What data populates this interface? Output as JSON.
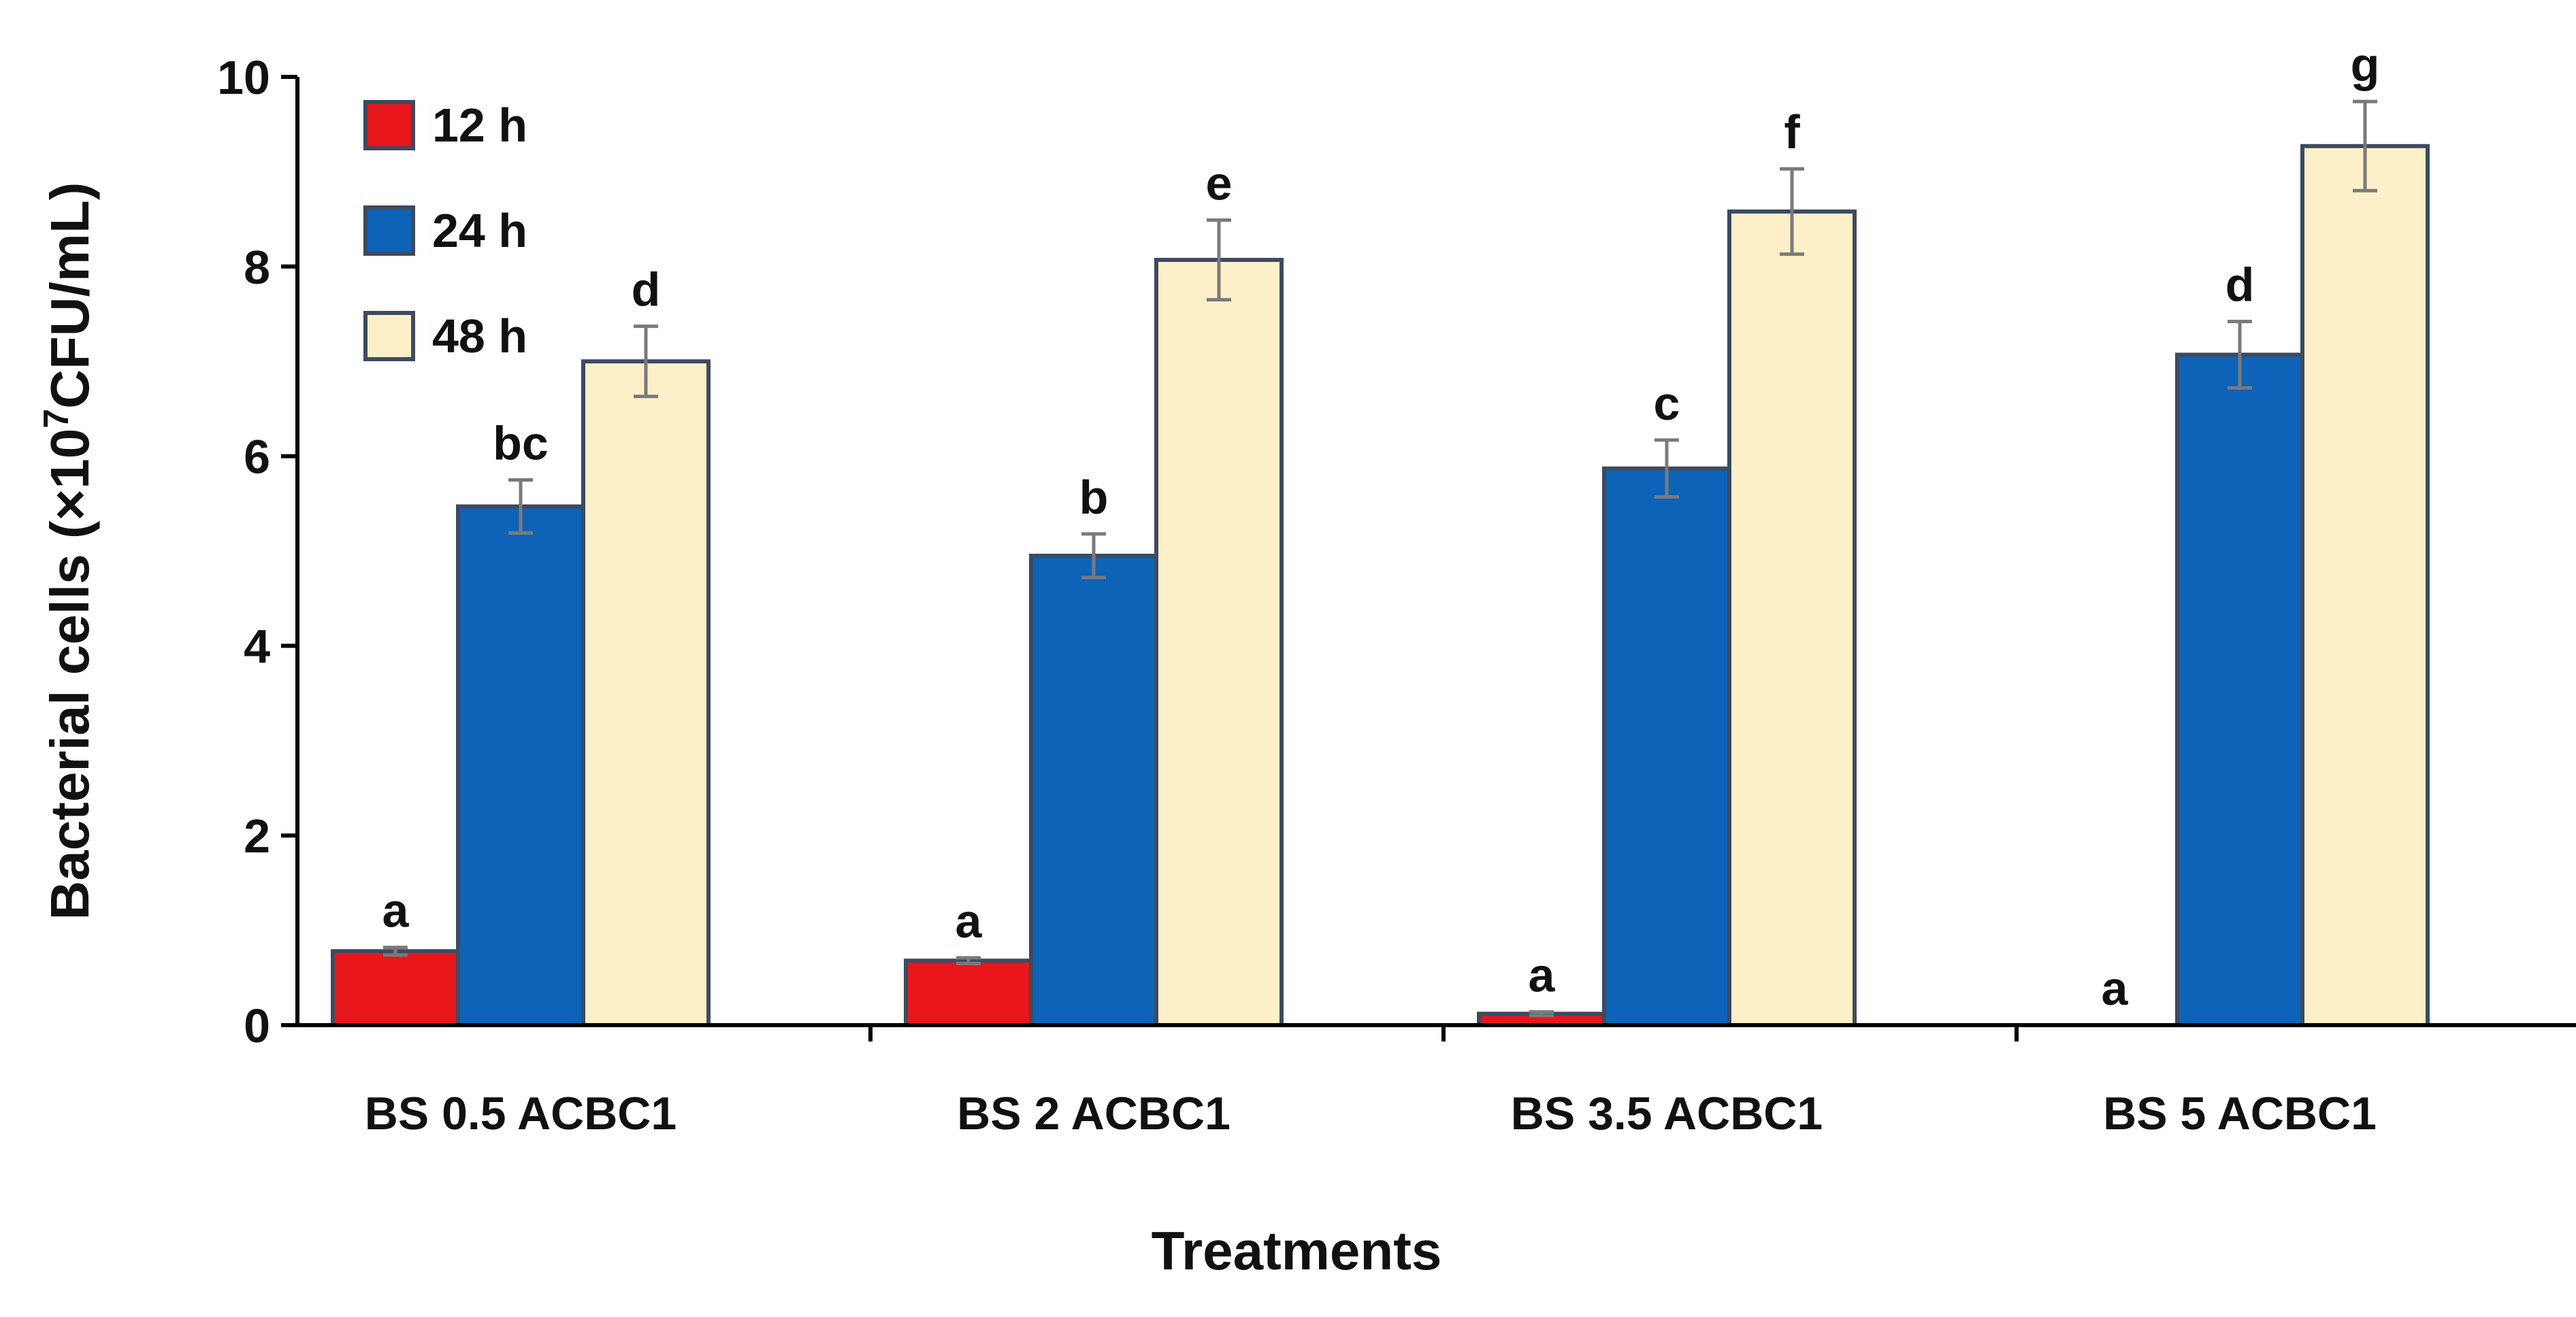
{
  "chart_data": {
    "type": "bar",
    "title": "",
    "xlabel": "Treatments",
    "ylabel_parts": [
      "Bacterial cells (×10",
      "7",
      "CFU/mL)"
    ],
    "ylim": [
      0,
      10
    ],
    "yticks": [
      0,
      2,
      4,
      6,
      8,
      10
    ],
    "ytick_labels": [
      "0",
      "2",
      "4",
      "6",
      "8",
      "10"
    ],
    "grid": false,
    "legend_position": "top-left",
    "categories": [
      "BS 0.5 ACBC1",
      "BS 2 ACBC1",
      "BS 3.5 ACBC1",
      "BS 5 ACBC1"
    ],
    "series": [
      {
        "name": "12 h",
        "color": "#e8161b",
        "values": [
          0.78,
          0.68,
          0.12,
          0.0
        ],
        "errors": [
          0.04,
          0.03,
          0.02,
          0.0
        ],
        "labels": [
          "a",
          "a",
          "a",
          "a"
        ]
      },
      {
        "name": "24 h",
        "color": "#0d63b8",
        "values": [
          5.47,
          4.95,
          5.87,
          7.07
        ],
        "errors": [
          0.28,
          0.23,
          0.3,
          0.35
        ],
        "labels": [
          "bc",
          "b",
          "c",
          "d"
        ]
      },
      {
        "name": "48 h",
        "color": "#fdf0c9",
        "values": [
          7.0,
          8.07,
          8.58,
          9.27
        ],
        "errors": [
          0.37,
          0.42,
          0.45,
          0.47
        ],
        "labels": [
          "d",
          "e",
          "f",
          "g"
        ]
      }
    ],
    "bar_stroke_color": "#3d4a60"
  }
}
